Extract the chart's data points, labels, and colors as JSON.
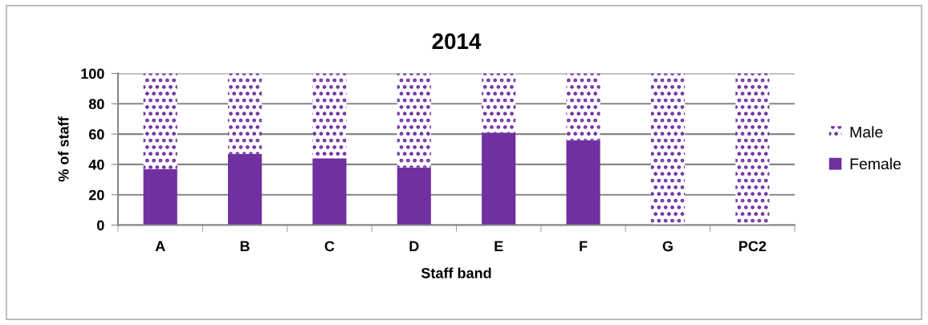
{
  "chart_data": {
    "type": "bar",
    "title": "2014",
    "xlabel": "Staff band",
    "ylabel": "% of staff",
    "categories": [
      "A",
      "B",
      "C",
      "D",
      "E",
      "F",
      "G",
      "PC2"
    ],
    "series": [
      {
        "name": "Female",
        "color": "#7030a0",
        "values": [
          37,
          47,
          44,
          38,
          61,
          56,
          0,
          0
        ]
      },
      {
        "name": "Male",
        "color": "#7030a0",
        "values": [
          63,
          53,
          56,
          62,
          39,
          44,
          100,
          100
        ]
      }
    ],
    "stacked": true,
    "ylim": [
      0,
      100
    ],
    "yticks": [
      0,
      20,
      40,
      60,
      80,
      100
    ],
    "grid": "y",
    "legend": "right"
  }
}
